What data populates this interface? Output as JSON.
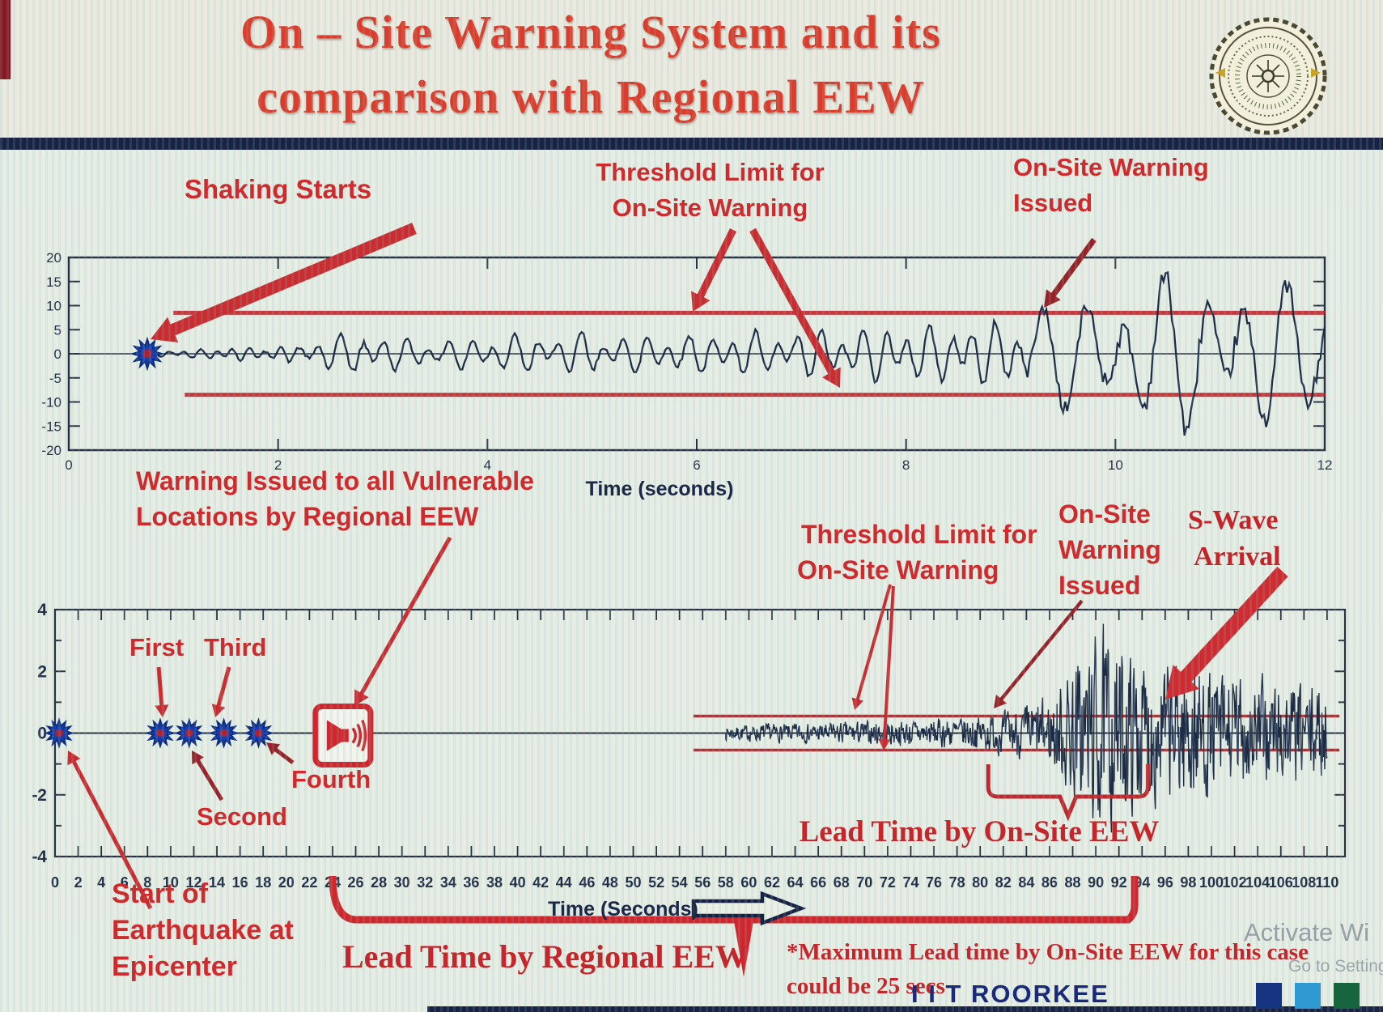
{
  "slide": {
    "title_line1": "On – Site Warning System and its",
    "title_line2": "comparison with Regional EEW",
    "footer_brand": "I I T ROORKEE",
    "watermark_line1": "Activate Wi",
    "watermark_line2": "Go to Setting",
    "footnote_line1": "*Maximum Lead time by On-Site EEW for this case",
    "footnote_line2": "could be 25 secs",
    "logo_name": "iit-roorkee-seal"
  },
  "colors": {
    "title_red": "#e23a28",
    "annotation_red": "#cf2a2d",
    "serif_red": "#c3242a",
    "dark_arrow_red": "#9c2025",
    "threshold_red": "#c8272c",
    "waveform_navy": "#1f2a44",
    "axis_navy": "#2a3040",
    "divider_navy": "#1b2142",
    "brand_navy": "#1a2a7a",
    "star_blue": "#1a3db0",
    "star_center_red": "#b02030",
    "icon_red": "#d6252a",
    "brand_squares": [
      "#16337f",
      "#2f9ad2",
      "#17653f"
    ]
  },
  "annotations_top": {
    "shaking_starts": "Shaking Starts",
    "threshold_line1": "Threshold Limit for",
    "threshold_line2": "On-Site Warning",
    "warning_line1": "On-Site Warning",
    "warning_line2": "Issued",
    "xlabel": "Time (seconds)"
  },
  "annotations_bottom": {
    "regional_line1": "Warning Issued to all Vulnerable",
    "regional_line2": "Locations by Regional EEW",
    "first": "First",
    "second": "Second",
    "third": "Third",
    "fourth": "Fourth",
    "start_line1": "Start of",
    "start_line2": "Earthquake at",
    "start_line3": "Epicenter",
    "threshold_line1": "Threshold Limit for",
    "threshold_line2": "On-Site Warning",
    "onsite_line1": "On-Site",
    "onsite_line2": "Warning",
    "onsite_line3": "Issued",
    "swave_line1": "S-Wave",
    "swave_line2": "Arrival",
    "lead_onsite": "Lead Time by On-Site EEW",
    "lead_regional": "Lead Time by Regional EEW",
    "xlabel": "Time (Seconds)"
  },
  "chart_data": [
    {
      "id": "top_seismogram",
      "type": "line",
      "xlabel": "Time (seconds)",
      "xlim": [
        0,
        12
      ],
      "ylim": [
        -20,
        20
      ],
      "x_ticks": [
        0,
        2,
        4,
        6,
        8,
        10,
        12
      ],
      "y_ticks": [
        20,
        15,
        10,
        5,
        0,
        -5,
        -10,
        -15,
        -20
      ],
      "grid": false,
      "threshold_value": 8.5,
      "threshold_span_x": [
        1.0,
        12
      ],
      "event_marker_x": 0.75,
      "wave_start_x": 0.78,
      "first_threshold_crossing_x": 9.3,
      "envelope": [
        [
          0.78,
          0.5
        ],
        [
          1.1,
          0.8
        ],
        [
          1.6,
          1.3
        ],
        [
          2.2,
          1.6
        ],
        [
          2.35,
          3.4
        ],
        [
          2.8,
          4.2
        ],
        [
          3.3,
          2.6
        ],
        [
          3.9,
          3.1
        ],
        [
          4.5,
          4.0
        ],
        [
          5.1,
          4.4
        ],
        [
          5.7,
          3.4
        ],
        [
          6.4,
          4.0
        ],
        [
          7.2,
          4.6
        ],
        [
          8.0,
          5.2
        ],
        [
          8.7,
          6.0
        ],
        [
          9.1,
          6.8
        ],
        [
          9.3,
          9.8
        ],
        [
          9.7,
          11.0
        ],
        [
          10.2,
          14.0
        ],
        [
          10.8,
          16.5
        ],
        [
          11.3,
          14.0
        ],
        [
          12.0,
          13.0
        ]
      ]
    },
    {
      "id": "bottom_seismogram",
      "type": "line",
      "xlabel": "Time (Seconds)",
      "xlim": [
        0,
        110
      ],
      "ylim": [
        -4,
        4
      ],
      "x_ticks": [
        0,
        2,
        4,
        6,
        8,
        10,
        12,
        14,
        16,
        18,
        20,
        22,
        24,
        26,
        28,
        30,
        32,
        34,
        36,
        38,
        40,
        42,
        44,
        46,
        48,
        50,
        52,
        54,
        56,
        58,
        60,
        62,
        64,
        66,
        68,
        70,
        72,
        74,
        76,
        78,
        80,
        82,
        84,
        86,
        88,
        90,
        92,
        94,
        96,
        98,
        100,
        102,
        104,
        106,
        108,
        110
      ],
      "y_ticks": [
        4,
        2,
        0,
        -2,
        -4
      ],
      "grid": false,
      "threshold_value": 0.55,
      "threshold_span_x": [
        55.2,
        110
      ],
      "p_wave_report_markers_x": [
        0.35,
        9.1,
        11.6,
        14.6,
        17.6
      ],
      "regional_warning_icon_x": 24.9,
      "wave_start_x": 58,
      "s_wave_arrival_x": 88,
      "lead_time_regional_span_x": [
        24,
        92.8
      ],
      "lead_time_onsite_span_x": [
        80.7,
        94.5
      ],
      "envelope": [
        [
          58,
          0.22
        ],
        [
          62,
          0.28
        ],
        [
          66,
          0.3
        ],
        [
          70,
          0.36
        ],
        [
          74,
          0.4
        ],
        [
          78,
          0.48
        ],
        [
          80,
          0.55
        ],
        [
          82,
          0.65
        ],
        [
          84,
          0.85
        ],
        [
          86,
          1.1
        ],
        [
          87.5,
          1.9
        ],
        [
          89,
          2.6
        ],
        [
          90.5,
          3.1
        ],
        [
          92,
          2.6
        ],
        [
          94,
          2.3
        ],
        [
          96,
          2.1
        ],
        [
          98,
          2.3
        ],
        [
          100,
          1.9
        ],
        [
          102,
          1.8
        ],
        [
          104,
          1.6
        ],
        [
          106,
          1.7
        ],
        [
          108,
          1.4
        ],
        [
          110,
          1.5
        ]
      ]
    }
  ]
}
